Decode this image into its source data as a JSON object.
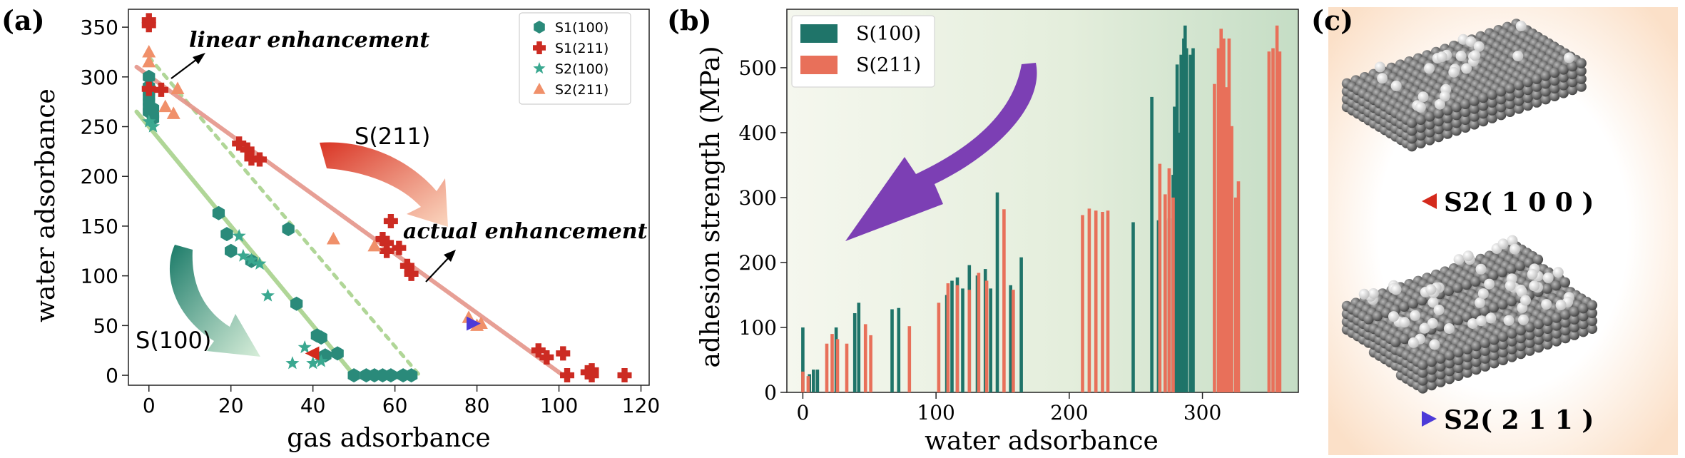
{
  "panels": [
    {
      "label": "(a)",
      "chart_data": {
        "type": "scatter",
        "xlabel": "gas adsorbance",
        "ylabel": "water adsorbance",
        "xlim": [
          -5,
          122
        ],
        "ylim": [
          -10,
          368
        ],
        "xticks": [
          0,
          20,
          40,
          60,
          80,
          100,
          120
        ],
        "yticks": [
          0,
          50,
          100,
          150,
          200,
          250,
          300,
          350
        ],
        "legend_position": "top-right",
        "series": [
          {
            "name": "S1(100)",
            "marker": "hexagon",
            "color": "#2a8a7a",
            "points": [
              [
                0,
                300
              ],
              [
                0,
                290
              ],
              [
                0,
                285
              ],
              [
                0,
                280
              ],
              [
                0,
                275
              ],
              [
                0,
                270
              ],
              [
                0,
                265
              ],
              [
                1,
                262
              ],
              [
                1,
                258
              ],
              [
                1,
                268
              ],
              [
                17,
                163
              ],
              [
                19,
                142
              ],
              [
                20,
                125
              ],
              [
                25,
                115
              ],
              [
                34,
                147
              ],
              [
                36,
                72
              ],
              [
                41,
                40
              ],
              [
                42,
                38
              ],
              [
                43,
                20
              ],
              [
                46,
                22
              ],
              [
                50,
                0
              ],
              [
                53,
                0
              ],
              [
                55,
                0
              ],
              [
                57,
                0
              ],
              [
                59,
                0
              ],
              [
                62,
                0
              ],
              [
                64,
                0
              ]
            ]
          },
          {
            "name": "S1(211)",
            "marker": "cross",
            "color": "#cc2b22",
            "points": [
              [
                0,
                357
              ],
              [
                0,
                352
              ],
              [
                0,
                288
              ],
              [
                3,
                287
              ],
              [
                22,
                233
              ],
              [
                24,
                227
              ],
              [
                25,
                218
              ],
              [
                27,
                217
              ],
              [
                57,
                137
              ],
              [
                58,
                133
              ],
              [
                58,
                125
              ],
              [
                59,
                155
              ],
              [
                61,
                128
              ],
              [
                63,
                110
              ],
              [
                64,
                102
              ],
              [
                95,
                25
              ],
              [
                97,
                18
              ],
              [
                101,
                22
              ],
              [
                102,
                0
              ],
              [
                107,
                3
              ],
              [
                108,
                5
              ],
              [
                108,
                0
              ],
              [
                116,
                0
              ]
            ]
          },
          {
            "name": "S2(100)",
            "marker": "star",
            "color": "#3aa890",
            "points": [
              [
                0,
                255
              ],
              [
                1,
                250
              ],
              [
                22,
                140
              ],
              [
                23,
                120
              ],
              [
                25,
                116
              ],
              [
                27,
                112
              ],
              [
                29,
                80
              ],
              [
                35,
                12
              ],
              [
                38,
                28
              ],
              [
                40,
                12
              ],
              [
                42,
                14
              ]
            ]
          },
          {
            "name": "S2(211)",
            "marker": "triangle",
            "color": "#f0906a",
            "points": [
              [
                0,
                325
              ],
              [
                0,
                315
              ],
              [
                4,
                270
              ],
              [
                6,
                263
              ],
              [
                7,
                288
              ],
              [
                45,
                137
              ],
              [
                55,
                130
              ],
              [
                78,
                58
              ],
              [
                80,
                50
              ],
              [
                81,
                52
              ]
            ]
          }
        ],
        "special_points": [
          {
            "label": "S2(1 0 0)",
            "x": 40,
            "y": 22,
            "color": "#d42a1c",
            "marker": "triangle-left"
          },
          {
            "label": "S2(2 1 1)",
            "x": 79,
            "y": 52,
            "color": "#4c3ad8",
            "marker": "triangle-right"
          }
        ],
        "fit_lines": [
          {
            "name": "S(100) fit",
            "from": [
              -3,
              265
            ],
            "to": [
              50,
              0
            ],
            "color": "#a8d28c",
            "style": "solid"
          },
          {
            "name": "linear enhancement",
            "from": [
              0,
              320
            ],
            "to": [
              66,
              0
            ],
            "color": "#a8d28c",
            "style": "dotted"
          },
          {
            "name": "S(211) fit",
            "from": [
              -3,
              310
            ],
            "to": [
              101,
              0
            ],
            "color": "#e5958a",
            "style": "solid"
          }
        ],
        "annotations": {
          "linear": "linear enhancement",
          "actual": "actual enhancement",
          "s211": "S(211)",
          "s100": "S(100)"
        }
      }
    },
    {
      "label": "(b)",
      "chart_data": {
        "type": "bar",
        "xlabel": "water adsorbance",
        "ylabel": "adhesion strength (MPa)",
        "xlim": [
          -12,
          372
        ],
        "ylim": [
          0,
          590
        ],
        "xticks": [
          0,
          100,
          200,
          300
        ],
        "yticks": [
          0,
          100,
          200,
          300,
          400,
          500
        ],
        "legend_position": "top-left",
        "series": [
          {
            "name": "S(100)",
            "color": "#1f7469",
            "bars": [
              [
                0,
                100
              ],
              [
                5,
                28
              ],
              [
                8,
                35
              ],
              [
                11,
                35
              ],
              [
                25,
                100
              ],
              [
                39,
                122
              ],
              [
                42,
                138
              ],
              [
                67,
                128
              ],
              [
                72,
                130
              ],
              [
                108,
                150
              ],
              [
                112,
                172
              ],
              [
                116,
                177
              ],
              [
                120,
                160
              ],
              [
                125,
                196
              ],
              [
                131,
                180
              ],
              [
                137,
                190
              ],
              [
                141,
                160
              ],
              [
                146,
                308
              ],
              [
                156,
                165
              ],
              [
                164,
                208
              ],
              [
                248,
                262
              ],
              [
                262,
                455
              ],
              [
                267,
                265
              ],
              [
                272,
                265
              ],
              [
                275,
                268
              ],
              [
                278,
                335
              ],
              [
                279,
                440
              ],
              [
                281,
                505
              ],
              [
                283,
                400
              ],
              [
                284,
                520
              ],
              [
                286,
                545
              ],
              [
                287,
                565
              ],
              [
                288,
                530
              ],
              [
                291,
                520
              ],
              [
                293,
                530
              ]
            ]
          },
          {
            "name": "S(211)",
            "color": "#e8705a",
            "bars": [
              [
                0,
                32
              ],
              [
                4,
                25
              ],
              [
                18,
                75
              ],
              [
                22,
                90
              ],
              [
                26,
                82
              ],
              [
                33,
                75
              ],
              [
                47,
                105
              ],
              [
                51,
                88
              ],
              [
                80,
                102
              ],
              [
                102,
                138
              ],
              [
                109,
                168
              ],
              [
                116,
                165
              ],
              [
                125,
                158
              ],
              [
                132,
                184
              ],
              [
                138,
                172
              ],
              [
                151,
                282
              ],
              [
                158,
                158
              ],
              [
                210,
                273
              ],
              [
                215,
                283
              ],
              [
                220,
                280
              ],
              [
                225,
                278
              ],
              [
                229,
                280
              ],
              [
                268,
                352
              ],
              [
                272,
                305
              ],
              [
                275,
                345
              ],
              [
                278,
                300
              ],
              [
                309,
                475
              ],
              [
                312,
                530
              ],
              [
                314,
                560
              ],
              [
                316,
                545
              ],
              [
                318,
                470
              ],
              [
                320,
                545
              ],
              [
                322,
                410
              ],
              [
                325,
                300
              ],
              [
                327,
                325
              ],
              [
                350,
                525
              ],
              [
                353,
                530
              ],
              [
                356,
                565
              ],
              [
                358,
                525
              ]
            ]
          }
        ]
      }
    },
    {
      "label": "(c)",
      "structures": [
        {
          "label": "S2( 1 0 0 )",
          "marker_color": "#d42a1c",
          "marker": "triangle-left"
        },
        {
          "label": "S2( 2 1 1 )",
          "marker_color": "#4c3ad8",
          "marker": "triangle-right"
        }
      ]
    }
  ]
}
